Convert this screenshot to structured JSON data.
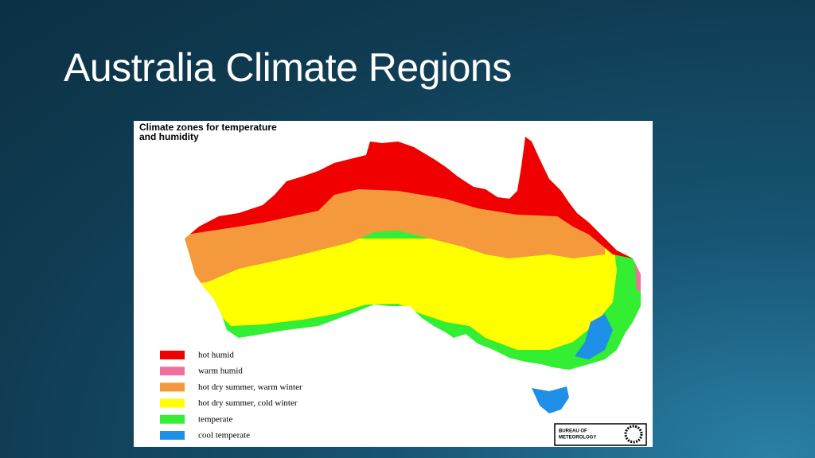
{
  "slide": {
    "title": "Australia Climate Regions"
  },
  "map": {
    "title_lines": [
      "Climate zones for temperature",
      "and humidity"
    ],
    "legend": [
      {
        "label": "hot humid",
        "color": "#f00000"
      },
      {
        "label": "warm humid",
        "color": "#f070a0"
      },
      {
        "label": "hot dry summer, warm winter",
        "color": "#f59a3c"
      },
      {
        "label": "hot dry summer, cold winter",
        "color": "#ffff00"
      },
      {
        "label": "temperate",
        "color": "#33ee33"
      },
      {
        "label": "cool temperate",
        "color": "#1e90e8"
      }
    ],
    "logo_lines": [
      "BUREAU OF",
      "METEOROLOGY"
    ]
  }
}
